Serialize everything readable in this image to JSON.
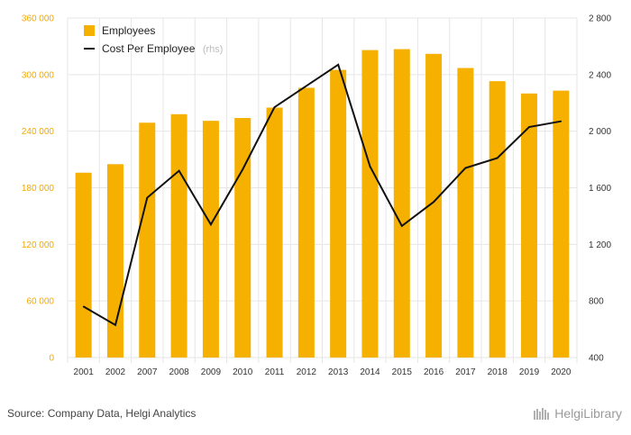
{
  "chart_data": {
    "type": "bar",
    "categories": [
      "2001",
      "2002",
      "2007",
      "2008",
      "2009",
      "2010",
      "2011",
      "2012",
      "2013",
      "2014",
      "2015",
      "2016",
      "2017",
      "2018",
      "2019",
      "2020"
    ],
    "series": [
      {
        "name": "Employees",
        "type": "bar",
        "axis": "left",
        "color": "#f5b000",
        "values": [
          196000,
          205000,
          249000,
          258000,
          251000,
          254000,
          265000,
          286000,
          305000,
          326000,
          327000,
          322000,
          307000,
          293000,
          280000,
          283000
        ]
      },
      {
        "name": "Cost Per Employee",
        "name_suffix": "(rhs)",
        "type": "line",
        "axis": "right",
        "color": "#111111",
        "values": [
          760,
          630,
          1530,
          1720,
          1340,
          1730,
          2170,
          2320,
          2470,
          1750,
          1330,
          1500,
          1740,
          1810,
          2030,
          2070
        ]
      }
    ],
    "ylim_left": [
      0,
      360000
    ],
    "yticks_left": [
      "0",
      "60 000",
      "120 000",
      "180 000",
      "240 000",
      "300 000",
      "360 000"
    ],
    "ylim_right": [
      400,
      2800
    ],
    "yticks_right": [
      "400",
      "800",
      "1 200",
      "1 600",
      "2 000",
      "2 400",
      "2 800"
    ],
    "grid": true,
    "legend_position": "top-left"
  },
  "footer": {
    "source": "Source: Company Data, Helgi Analytics",
    "brand": "HelgiLibrary"
  },
  "colors": {
    "bar": "#f5b000",
    "line": "#111111",
    "left_axis_text": "#f2a900",
    "grid": "#e6e6e6"
  }
}
